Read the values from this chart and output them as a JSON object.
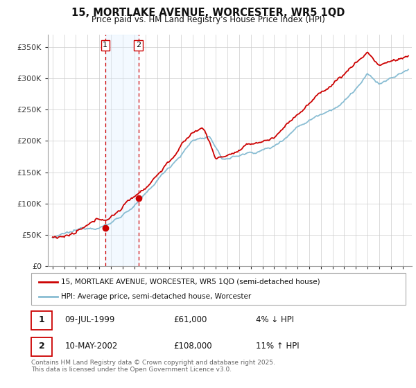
{
  "title": "15, MORTLAKE AVENUE, WORCESTER, WR5 1QD",
  "subtitle": "Price paid vs. HM Land Registry's House Price Index (HPI)",
  "ylabel_ticks": [
    "£0",
    "£50K",
    "£100K",
    "£150K",
    "£200K",
    "£250K",
    "£300K",
    "£350K"
  ],
  "ytick_values": [
    0,
    50000,
    100000,
    150000,
    200000,
    250000,
    300000,
    350000
  ],
  "ylim": [
    0,
    370000
  ],
  "xlim_start": 1994.6,
  "xlim_end": 2025.8,
  "legend_line1": "15, MORTLAKE AVENUE, WORCESTER, WR5 1QD (semi-detached house)",
  "legend_line2": "HPI: Average price, semi-detached house, Worcester",
  "transaction1_date": "09-JUL-1999",
  "transaction1_price": "£61,000",
  "transaction1_hpi": "4% ↓ HPI",
  "transaction1_year": 1999.52,
  "transaction1_value": 61000,
  "transaction2_date": "10-MAY-2002",
  "transaction2_price": "£108,000",
  "transaction2_hpi": "11% ↑ HPI",
  "transaction2_year": 2002.36,
  "transaction2_value": 108000,
  "red_color": "#cc0000",
  "blue_color": "#89bdd3",
  "span_color": "#ddeeff",
  "footer": "Contains HM Land Registry data © Crown copyright and database right 2025.\nThis data is licensed under the Open Government Licence v3.0.",
  "background_color": "#ffffff",
  "grid_color": "#cccccc"
}
